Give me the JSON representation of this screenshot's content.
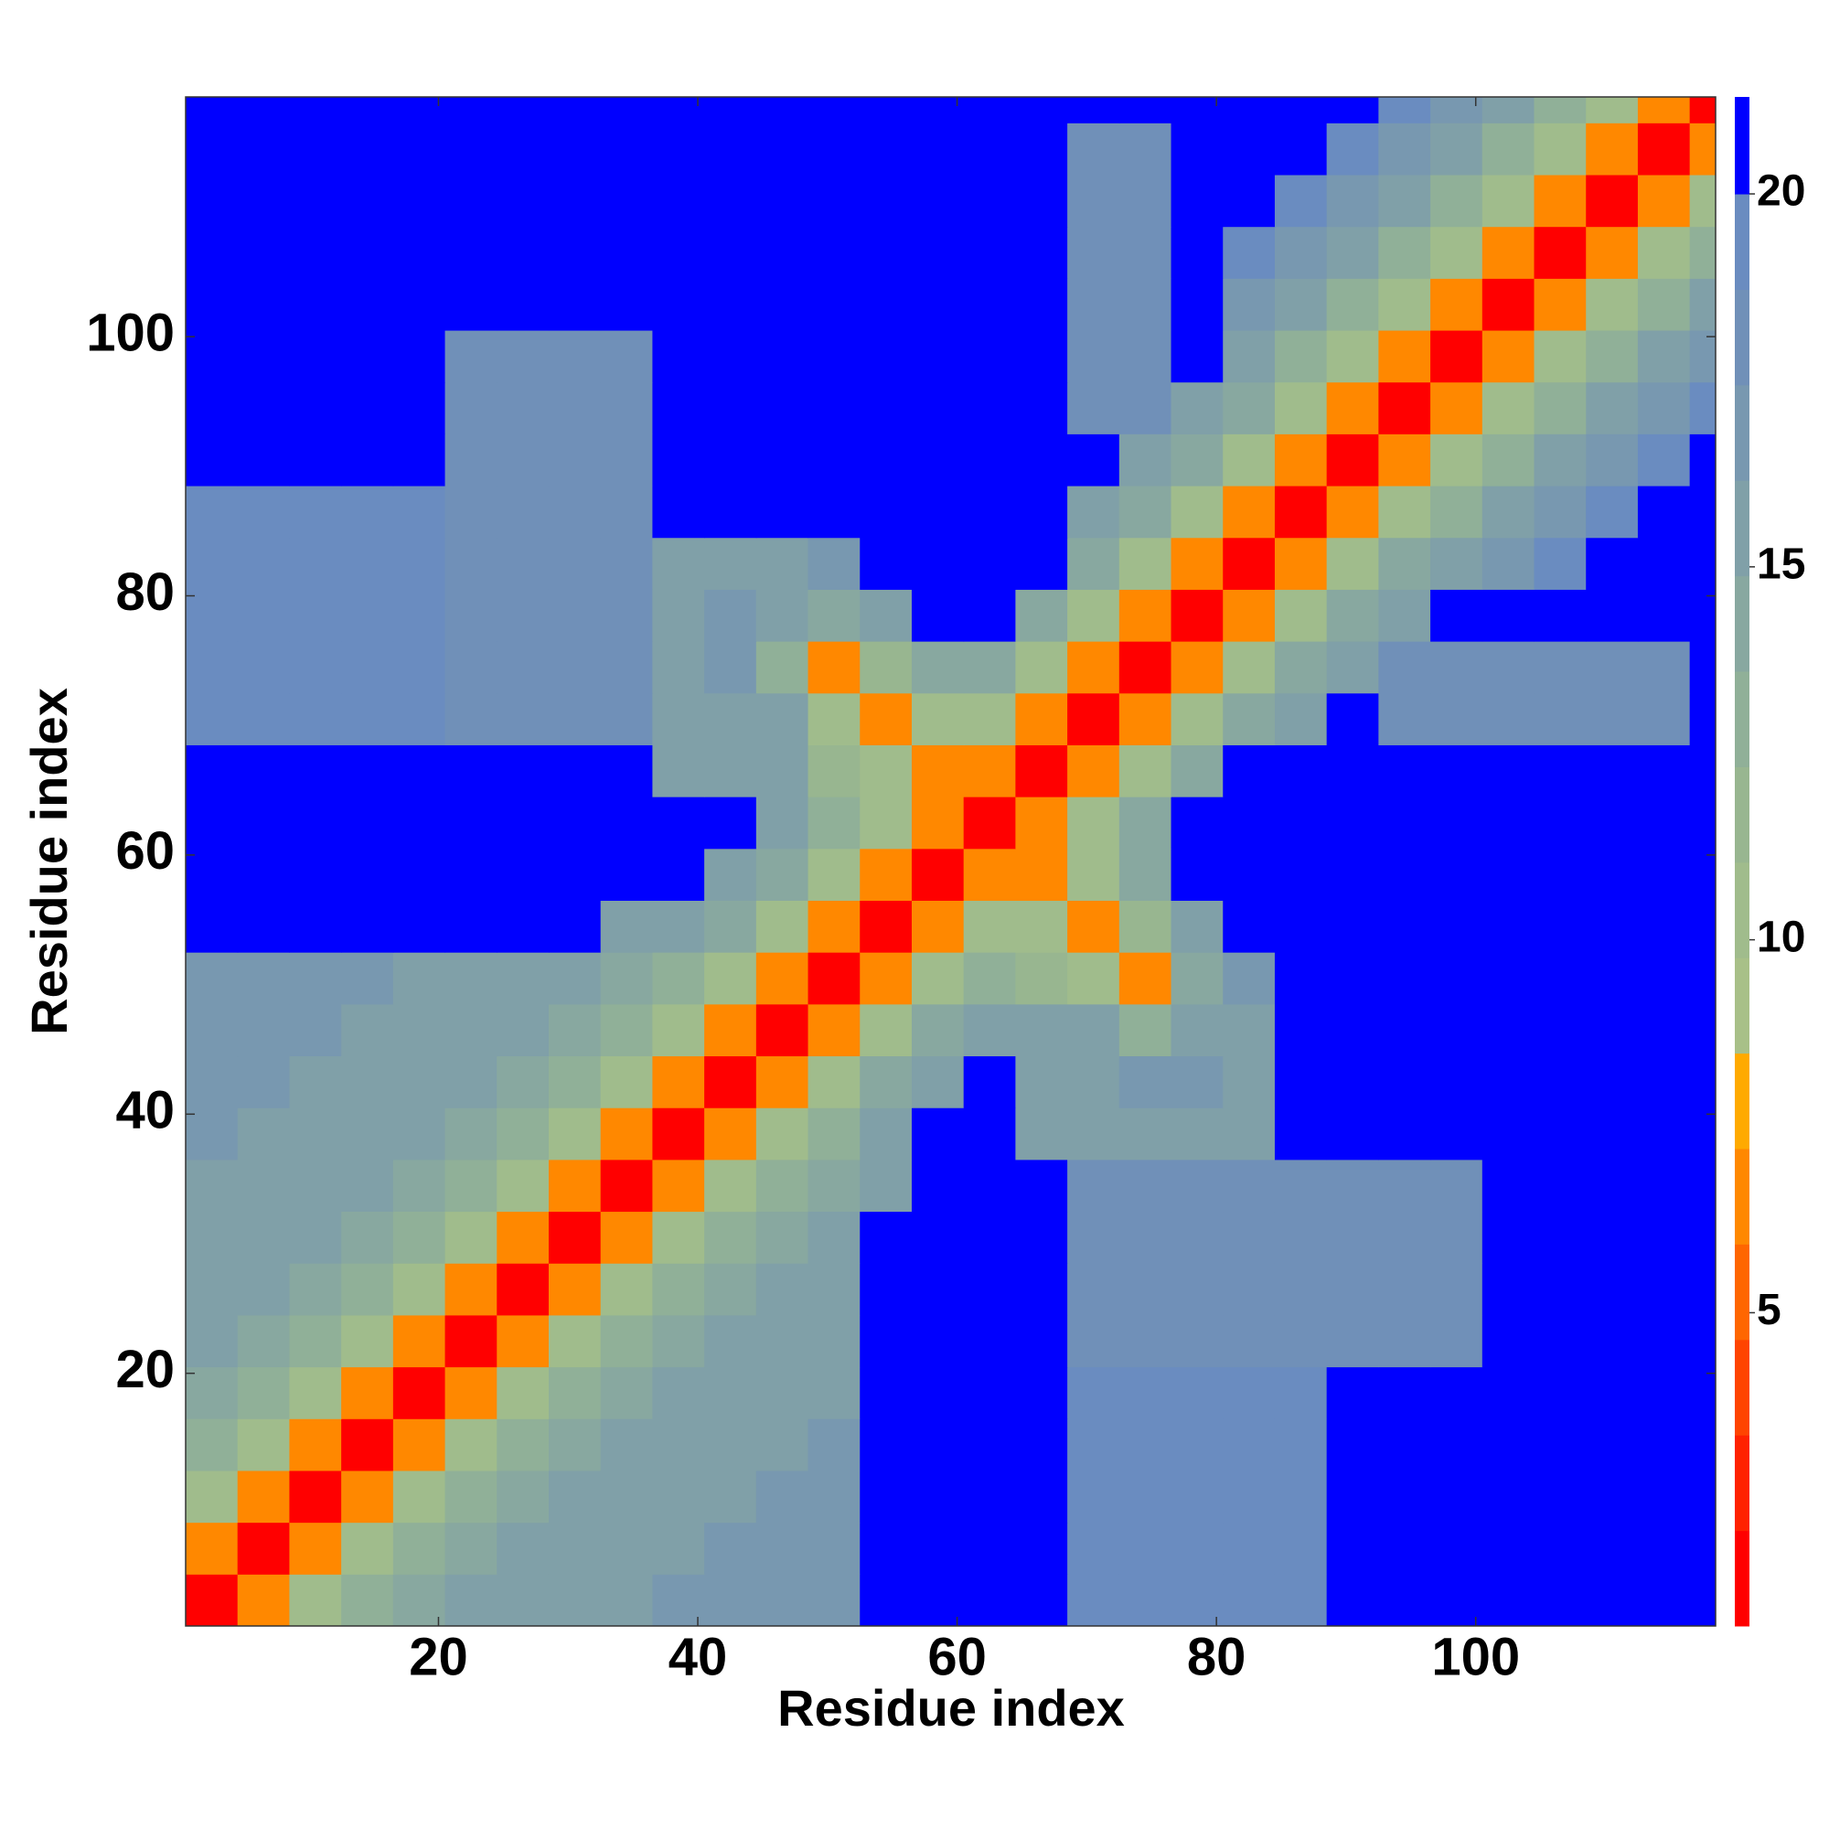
{
  "chart_data": {
    "type": "heatmap",
    "xlabel": "Residue index",
    "ylabel": "Residue index",
    "xlim": [
      0.5,
      118.5
    ],
    "ylim": [
      0.5,
      118.5
    ],
    "xticks": [
      20,
      40,
      60,
      80,
      100
    ],
    "yticks": [
      20,
      40,
      60,
      80,
      100
    ],
    "xbins": [
      0.5,
      4.5,
      8.5,
      12.5,
      16.5,
      20.5,
      24.5,
      28.5,
      32.5,
      36.5,
      40.5,
      44.5,
      48.5,
      52.5,
      56.5,
      60.5,
      64.5,
      68.5,
      72.5,
      76.5,
      80.5,
      84.5,
      88.5,
      92.5,
      96.5,
      100.5,
      104.5,
      108.5,
      112.5,
      116.5,
      118.5
    ],
    "ybins": [
      0.5,
      4.5,
      8.5,
      12.5,
      16.5,
      20.5,
      24.5,
      28.5,
      32.5,
      36.5,
      40.5,
      44.5,
      48.5,
      52.5,
      56.5,
      60.5,
      64.5,
      68.5,
      72.5,
      76.5,
      80.5,
      84.5,
      88.5,
      92.5,
      96.5,
      100.5,
      104.5,
      108.5,
      112.5,
      116.5,
      118.5
    ],
    "values": [
      [
        2,
        7,
        11,
        13,
        14,
        15,
        16,
        16,
        16,
        17,
        17,
        17,
        17,
        21,
        21,
        21,
        21,
        19,
        19,
        19,
        19,
        19,
        21,
        21,
        21,
        21,
        21,
        21,
        21,
        21
      ],
      [
        7,
        2,
        7,
        11,
        13,
        14,
        15,
        16,
        16,
        16,
        17,
        17,
        17,
        21,
        21,
        21,
        21,
        19,
        19,
        19,
        19,
        19,
        21,
        21,
        21,
        21,
        21,
        21,
        21,
        21
      ],
      [
        11,
        7,
        2,
        7,
        11,
        13,
        14,
        15,
        16,
        16,
        16,
        17,
        17,
        21,
        21,
        21,
        21,
        19,
        19,
        19,
        19,
        19,
        21,
        21,
        21,
        21,
        21,
        21,
        21,
        21
      ],
      [
        13,
        11,
        7,
        2,
        7,
        11,
        13,
        14,
        15,
        16,
        16,
        16,
        17,
        21,
        21,
        21,
        21,
        19,
        19,
        19,
        19,
        19,
        21,
        21,
        21,
        21,
        21,
        21,
        21,
        21
      ],
      [
        14,
        13,
        11,
        7,
        2,
        7,
        11,
        13,
        14,
        15,
        16,
        16,
        16,
        21,
        21,
        21,
        21,
        19,
        19,
        19,
        19,
        19,
        21,
        21,
        21,
        21,
        21,
        21,
        21,
        21
      ],
      [
        15,
        14,
        13,
        11,
        7,
        2,
        7,
        11,
        13,
        14,
        15,
        16,
        16,
        21,
        21,
        21,
        21,
        18,
        18,
        18,
        18,
        18,
        18,
        18,
        18,
        21,
        21,
        21,
        21,
        21
      ],
      [
        16,
        15,
        14,
        13,
        11,
        7,
        2,
        7,
        11,
        13,
        14,
        15,
        16,
        21,
        21,
        21,
        21,
        18,
        18,
        18,
        18,
        18,
        18,
        18,
        18,
        21,
        21,
        21,
        21,
        21
      ],
      [
        16,
        16,
        15,
        14,
        13,
        11,
        7,
        2,
        7,
        11,
        13,
        14,
        15,
        21,
        21,
        21,
        21,
        18,
        18,
        18,
        18,
        18,
        18,
        18,
        18,
        21,
        21,
        21,
        21,
        21
      ],
      [
        16,
        16,
        16,
        15,
        14,
        13,
        11,
        7,
        2,
        7,
        11,
        13,
        14,
        16,
        21,
        21,
        21,
        18,
        18,
        18,
        18,
        18,
        18,
        18,
        18,
        21,
        21,
        21,
        21,
        21
      ],
      [
        17,
        16,
        16,
        16,
        15,
        14,
        13,
        11,
        7,
        2,
        7,
        11,
        13,
        15,
        21,
        21,
        16,
        16,
        16,
        16,
        16,
        21,
        21,
        21,
        21,
        21,
        21,
        21,
        21,
        21
      ],
      [
        17,
        17,
        16,
        16,
        16,
        15,
        14,
        13,
        11,
        7,
        2,
        7,
        11,
        14,
        16,
        21,
        16,
        16,
        17,
        17,
        16,
        21,
        21,
        21,
        21,
        21,
        21,
        21,
        21,
        21
      ],
      [
        17,
        17,
        17,
        16,
        16,
        16,
        15,
        14,
        13,
        11,
        7,
        2,
        7,
        11,
        14,
        16,
        16,
        15,
        13,
        16,
        16,
        21,
        21,
        21,
        21,
        21,
        21,
        21,
        21,
        21
      ],
      [
        17,
        17,
        17,
        17,
        16,
        16,
        16,
        15,
        14,
        13,
        11,
        7,
        2,
        7,
        11,
        13,
        12,
        11,
        7,
        14,
        17,
        21,
        21,
        21,
        21,
        21,
        21,
        21,
        21,
        21
      ],
      [
        21,
        21,
        21,
        21,
        21,
        21,
        21,
        21,
        16,
        15,
        14,
        11,
        7,
        2,
        7,
        11,
        11,
        7,
        12,
        16,
        21,
        21,
        21,
        21,
        21,
        21,
        21,
        21,
        21,
        21
      ],
      [
        21,
        21,
        21,
        21,
        21,
        21,
        21,
        21,
        21,
        21,
        16,
        14,
        11,
        7,
        2,
        7,
        7,
        11,
        14,
        21,
        21,
        21,
        21,
        21,
        21,
        21,
        21,
        21,
        21,
        21
      ],
      [
        21,
        21,
        21,
        21,
        21,
        21,
        21,
        21,
        21,
        21,
        21,
        16,
        13,
        11,
        7,
        2,
        7,
        11,
        14,
        21,
        21,
        21,
        21,
        21,
        21,
        21,
        21,
        21,
        21,
        21
      ],
      [
        21,
        21,
        21,
        21,
        21,
        21,
        21,
        21,
        21,
        16,
        16,
        16,
        12,
        11,
        7,
        7,
        2,
        7,
        11,
        14,
        21,
        21,
        21,
        21,
        21,
        21,
        21,
        21,
        21,
        21
      ],
      [
        19,
        19,
        19,
        19,
        19,
        18,
        18,
        18,
        18,
        16,
        16,
        15,
        11,
        7,
        11,
        11,
        7,
        2,
        7,
        11,
        14,
        16,
        21,
        18,
        18,
        18,
        18,
        18,
        18,
        21
      ],
      [
        19,
        19,
        19,
        19,
        19,
        18,
        18,
        18,
        18,
        16,
        17,
        13,
        7,
        12,
        14,
        14,
        11,
        7,
        2,
        7,
        11,
        14,
        16,
        18,
        18,
        18,
        18,
        18,
        18,
        21
      ],
      [
        19,
        19,
        19,
        19,
        19,
        18,
        18,
        18,
        18,
        16,
        17,
        16,
        14,
        16,
        21,
        21,
        14,
        11,
        7,
        2,
        7,
        11,
        14,
        16,
        21,
        21,
        21,
        21,
        21,
        21
      ],
      [
        19,
        19,
        19,
        19,
        19,
        18,
        18,
        18,
        18,
        16,
        16,
        16,
        17,
        21,
        21,
        21,
        21,
        14,
        11,
        7,
        2,
        7,
        11,
        14,
        15,
        17,
        19,
        21,
        21,
        21
      ],
      [
        19,
        19,
        19,
        19,
        19,
        18,
        18,
        18,
        18,
        21,
        21,
        21,
        21,
        21,
        21,
        21,
        21,
        16,
        14,
        11,
        7,
        2,
        6,
        11,
        13,
        15,
        17,
        19,
        21,
        21
      ],
      [
        21,
        21,
        21,
        21,
        21,
        18,
        18,
        18,
        18,
        21,
        21,
        21,
        21,
        21,
        21,
        21,
        21,
        21,
        16,
        14,
        11,
        6,
        2,
        6,
        10,
        13,
        15,
        17,
        19,
        21
      ],
      [
        21,
        21,
        21,
        21,
        21,
        18,
        18,
        18,
        18,
        21,
        21,
        21,
        21,
        21,
        21,
        21,
        21,
        18,
        18,
        16,
        14,
        11,
        6,
        2,
        6,
        10,
        13,
        15,
        17,
        19
      ],
      [
        21,
        21,
        21,
        21,
        21,
        18,
        18,
        18,
        18,
        21,
        21,
        21,
        21,
        21,
        21,
        21,
        21,
        18,
        18,
        21,
        15,
        13,
        10,
        6,
        2,
        6,
        11,
        13,
        15,
        17
      ],
      [
        21,
        21,
        21,
        21,
        21,
        21,
        21,
        21,
        21,
        21,
        21,
        21,
        21,
        21,
        21,
        21,
        21,
        18,
        18,
        21,
        17,
        15,
        13,
        10,
        6,
        2,
        7,
        11,
        13,
        15
      ],
      [
        21,
        21,
        21,
        21,
        21,
        21,
        21,
        21,
        21,
        21,
        21,
        21,
        21,
        21,
        21,
        21,
        21,
        18,
        18,
        21,
        19,
        17,
        15,
        13,
        11,
        7,
        2,
        7,
        11,
        13
      ],
      [
        21,
        21,
        21,
        21,
        21,
        21,
        21,
        21,
        21,
        21,
        21,
        21,
        21,
        21,
        21,
        21,
        21,
        18,
        18,
        21,
        21,
        19,
        17,
        15,
        13,
        11,
        7,
        2,
        7,
        11
      ],
      [
        21,
        21,
        21,
        21,
        21,
        21,
        21,
        21,
        21,
        21,
        21,
        21,
        21,
        21,
        21,
        21,
        21,
        18,
        18,
        21,
        21,
        21,
        19,
        17,
        15,
        13,
        11,
        7,
        2,
        7
      ],
      [
        21,
        21,
        21,
        21,
        21,
        21,
        21,
        21,
        21,
        21,
        21,
        21,
        21,
        21,
        21,
        21,
        21,
        21,
        21,
        21,
        21,
        21,
        21,
        19,
        17,
        15,
        13,
        11,
        7,
        2
      ]
    ],
    "colorbar": {
      "levels": [
        0.8,
        2.08,
        3.36,
        4.64,
        5.92,
        7.2,
        8.48,
        9.76,
        11.04,
        12.32,
        13.6,
        14.88,
        16.16,
        17.44,
        18.72,
        20,
        21.3
      ],
      "colors": [
        "#ff0000",
        "#ff2200",
        "#ff4400",
        "#ff6600",
        "#ff8800",
        "#ffaa00",
        "#a8c088",
        "#a0bc8c",
        "#98b690",
        "#90b098",
        "#88a8a0",
        "#80a0a8",
        "#7898b0",
        "#7090b8",
        "#6a8cc0",
        "#0000ff"
      ],
      "ticks": [
        5,
        10,
        15,
        20
      ]
    }
  }
}
